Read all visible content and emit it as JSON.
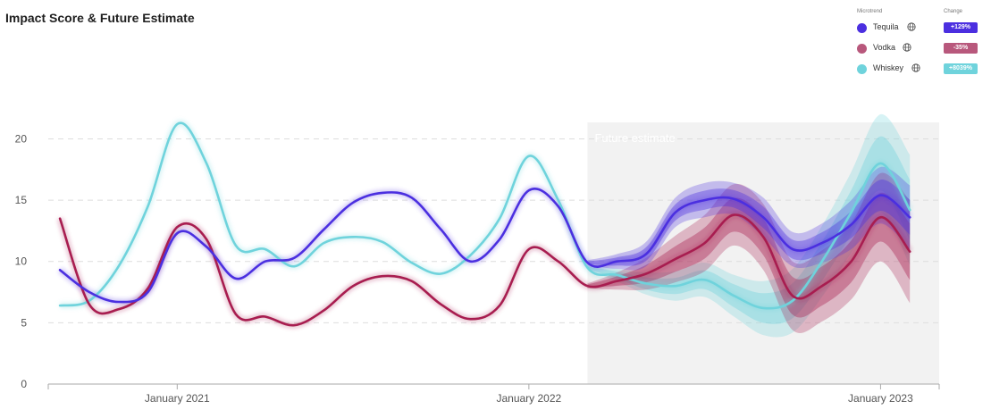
{
  "title": "Impact Score & Future Estimate",
  "legend": {
    "col_microtrend": "Microtrend",
    "col_change": "Change",
    "items": [
      {
        "name": "Tequila",
        "change": "+129%",
        "color": "#4b2fe0",
        "icon": "globe-icon"
      },
      {
        "name": "Vodka",
        "change": "-35%",
        "color": "#b8587c",
        "icon": "globe-icon"
      },
      {
        "name": "Whiskey",
        "change": "+8039%",
        "color": "#6fd3dc",
        "icon": "globe-icon"
      }
    ]
  },
  "chart_data": {
    "type": "line",
    "title": "Impact Score & Future Estimate",
    "xlabel": "",
    "ylabel": "",
    "ylim": [
      0,
      22
    ],
    "yticks": [
      "0",
      "5",
      "10",
      "15",
      "20"
    ],
    "xticks": [
      "January 2021",
      "January 2022",
      "January 2023"
    ],
    "grid": true,
    "legend_position": "top-right",
    "forecast_label": "Future estimate",
    "forecast_start": "2022-03",
    "series": [
      {
        "name": "Tequila",
        "color": "#4b2fe0",
        "points": [
          [
            "2020-09",
            9.3
          ],
          [
            "2020-10",
            7.5
          ],
          [
            "2020-11",
            6.7
          ],
          [
            "2020-12",
            7.5
          ],
          [
            "2021-01",
            12.3
          ],
          [
            "2021-02",
            11.2
          ],
          [
            "2021-03",
            8.6
          ],
          [
            "2021-04",
            10
          ],
          [
            "2021-05",
            10.3
          ],
          [
            "2021-06",
            12.6
          ],
          [
            "2021-07",
            14.8
          ],
          [
            "2021-08",
            15.6
          ],
          [
            "2021-09",
            15.2
          ],
          [
            "2021-10",
            12.6
          ],
          [
            "2021-11",
            10
          ],
          [
            "2021-12",
            11.8
          ],
          [
            "2022-01",
            15.8
          ],
          [
            "2022-02",
            14.5
          ],
          [
            "2022-03",
            9.9
          ],
          [
            "2022-04",
            10
          ],
          [
            "2022-05",
            10.6
          ],
          [
            "2022-06",
            14
          ],
          [
            "2022-07",
            15
          ],
          [
            "2022-08",
            15.1
          ],
          [
            "2022-09",
            13.6
          ],
          [
            "2022-10",
            11
          ],
          [
            "2022-11",
            11.5
          ],
          [
            "2022-12",
            13
          ],
          [
            "2023-01",
            15.4
          ],
          [
            "2023-02",
            13.6
          ]
        ],
        "band": [
          [
            "2022-03",
            0.2
          ],
          [
            "2022-04",
            0.6
          ],
          [
            "2022-05",
            1
          ],
          [
            "2022-06",
            1.2
          ],
          [
            "2022-07",
            1.4
          ],
          [
            "2022-08",
            1.3
          ],
          [
            "2022-09",
            1.6
          ],
          [
            "2022-10",
            1.4
          ],
          [
            "2022-11",
            1.6
          ],
          [
            "2022-12",
            2
          ],
          [
            "2023-01",
            2.3
          ],
          [
            "2023-02",
            2.6
          ]
        ]
      },
      {
        "name": "Vodka",
        "color": "#a81d50",
        "points": [
          [
            "2020-09",
            13.5
          ],
          [
            "2020-10",
            6.5
          ],
          [
            "2020-11",
            6.1
          ],
          [
            "2020-12",
            7.8
          ],
          [
            "2021-01",
            12.8
          ],
          [
            "2021-02",
            11.8
          ],
          [
            "2021-03",
            5.7
          ],
          [
            "2021-04",
            5.5
          ],
          [
            "2021-05",
            4.8
          ],
          [
            "2021-06",
            6
          ],
          [
            "2021-07",
            8
          ],
          [
            "2021-08",
            8.8
          ],
          [
            "2021-09",
            8.4
          ],
          [
            "2021-10",
            6.5
          ],
          [
            "2021-11",
            5.3
          ],
          [
            "2021-12",
            6.4
          ],
          [
            "2022-01",
            11
          ],
          [
            "2022-02",
            10
          ],
          [
            "2022-03",
            8
          ],
          [
            "2022-04",
            8.4
          ],
          [
            "2022-05",
            9
          ],
          [
            "2022-06",
            10.2
          ],
          [
            "2022-07",
            11.5
          ],
          [
            "2022-08",
            13.8
          ],
          [
            "2022-09",
            12
          ],
          [
            "2022-10",
            7.2
          ],
          [
            "2022-11",
            8
          ],
          [
            "2022-12",
            10
          ],
          [
            "2023-01",
            13.6
          ],
          [
            "2023-02",
            10.8
          ]
        ],
        "band": [
          [
            "2022-03",
            0.2
          ],
          [
            "2022-04",
            0.7
          ],
          [
            "2022-05",
            1.3
          ],
          [
            "2022-06",
            1.9
          ],
          [
            "2022-07",
            2.3
          ],
          [
            "2022-08",
            2.5
          ],
          [
            "2022-09",
            2.7
          ],
          [
            "2022-10",
            2.8
          ],
          [
            "2022-11",
            2.9
          ],
          [
            "2022-12",
            3.1
          ],
          [
            "2023-01",
            3.6
          ],
          [
            "2023-02",
            4.2
          ]
        ]
      },
      {
        "name": "Whiskey",
        "color": "#6fd3dc",
        "points": [
          [
            "2020-09",
            6.4
          ],
          [
            "2020-10",
            6.8
          ],
          [
            "2020-11",
            9.6
          ],
          [
            "2020-12",
            14.5
          ],
          [
            "2021-01",
            21.2
          ],
          [
            "2021-02",
            18
          ],
          [
            "2021-03",
            11.3
          ],
          [
            "2021-04",
            11
          ],
          [
            "2021-05",
            9.6
          ],
          [
            "2021-06",
            11.5
          ],
          [
            "2021-07",
            12
          ],
          [
            "2021-08",
            11.6
          ],
          [
            "2021-09",
            9.9
          ],
          [
            "2021-10",
            9
          ],
          [
            "2021-11",
            10.5
          ],
          [
            "2021-12",
            13.5
          ],
          [
            "2022-01",
            18.6
          ],
          [
            "2022-02",
            15
          ],
          [
            "2022-03",
            9.5
          ],
          [
            "2022-04",
            8.9
          ],
          [
            "2022-05",
            8.2
          ],
          [
            "2022-06",
            8
          ],
          [
            "2022-07",
            8.5
          ],
          [
            "2022-08",
            7.2
          ],
          [
            "2022-09",
            6.2
          ],
          [
            "2022-10",
            6.8
          ],
          [
            "2022-11",
            10
          ],
          [
            "2022-12",
            14
          ],
          [
            "2023-01",
            18
          ],
          [
            "2023-02",
            14.2
          ]
        ],
        "band": [
          [
            "2022-03",
            0.2
          ],
          [
            "2022-04",
            0.5
          ],
          [
            "2022-05",
            0.9
          ],
          [
            "2022-06",
            1.2
          ],
          [
            "2022-07",
            1.4
          ],
          [
            "2022-08",
            1.7
          ],
          [
            "2022-09",
            2.2
          ],
          [
            "2022-10",
            2.6
          ],
          [
            "2022-11",
            2.9
          ],
          [
            "2022-12",
            3.3
          ],
          [
            "2023-01",
            4
          ],
          [
            "2023-02",
            4.5
          ]
        ]
      }
    ]
  }
}
